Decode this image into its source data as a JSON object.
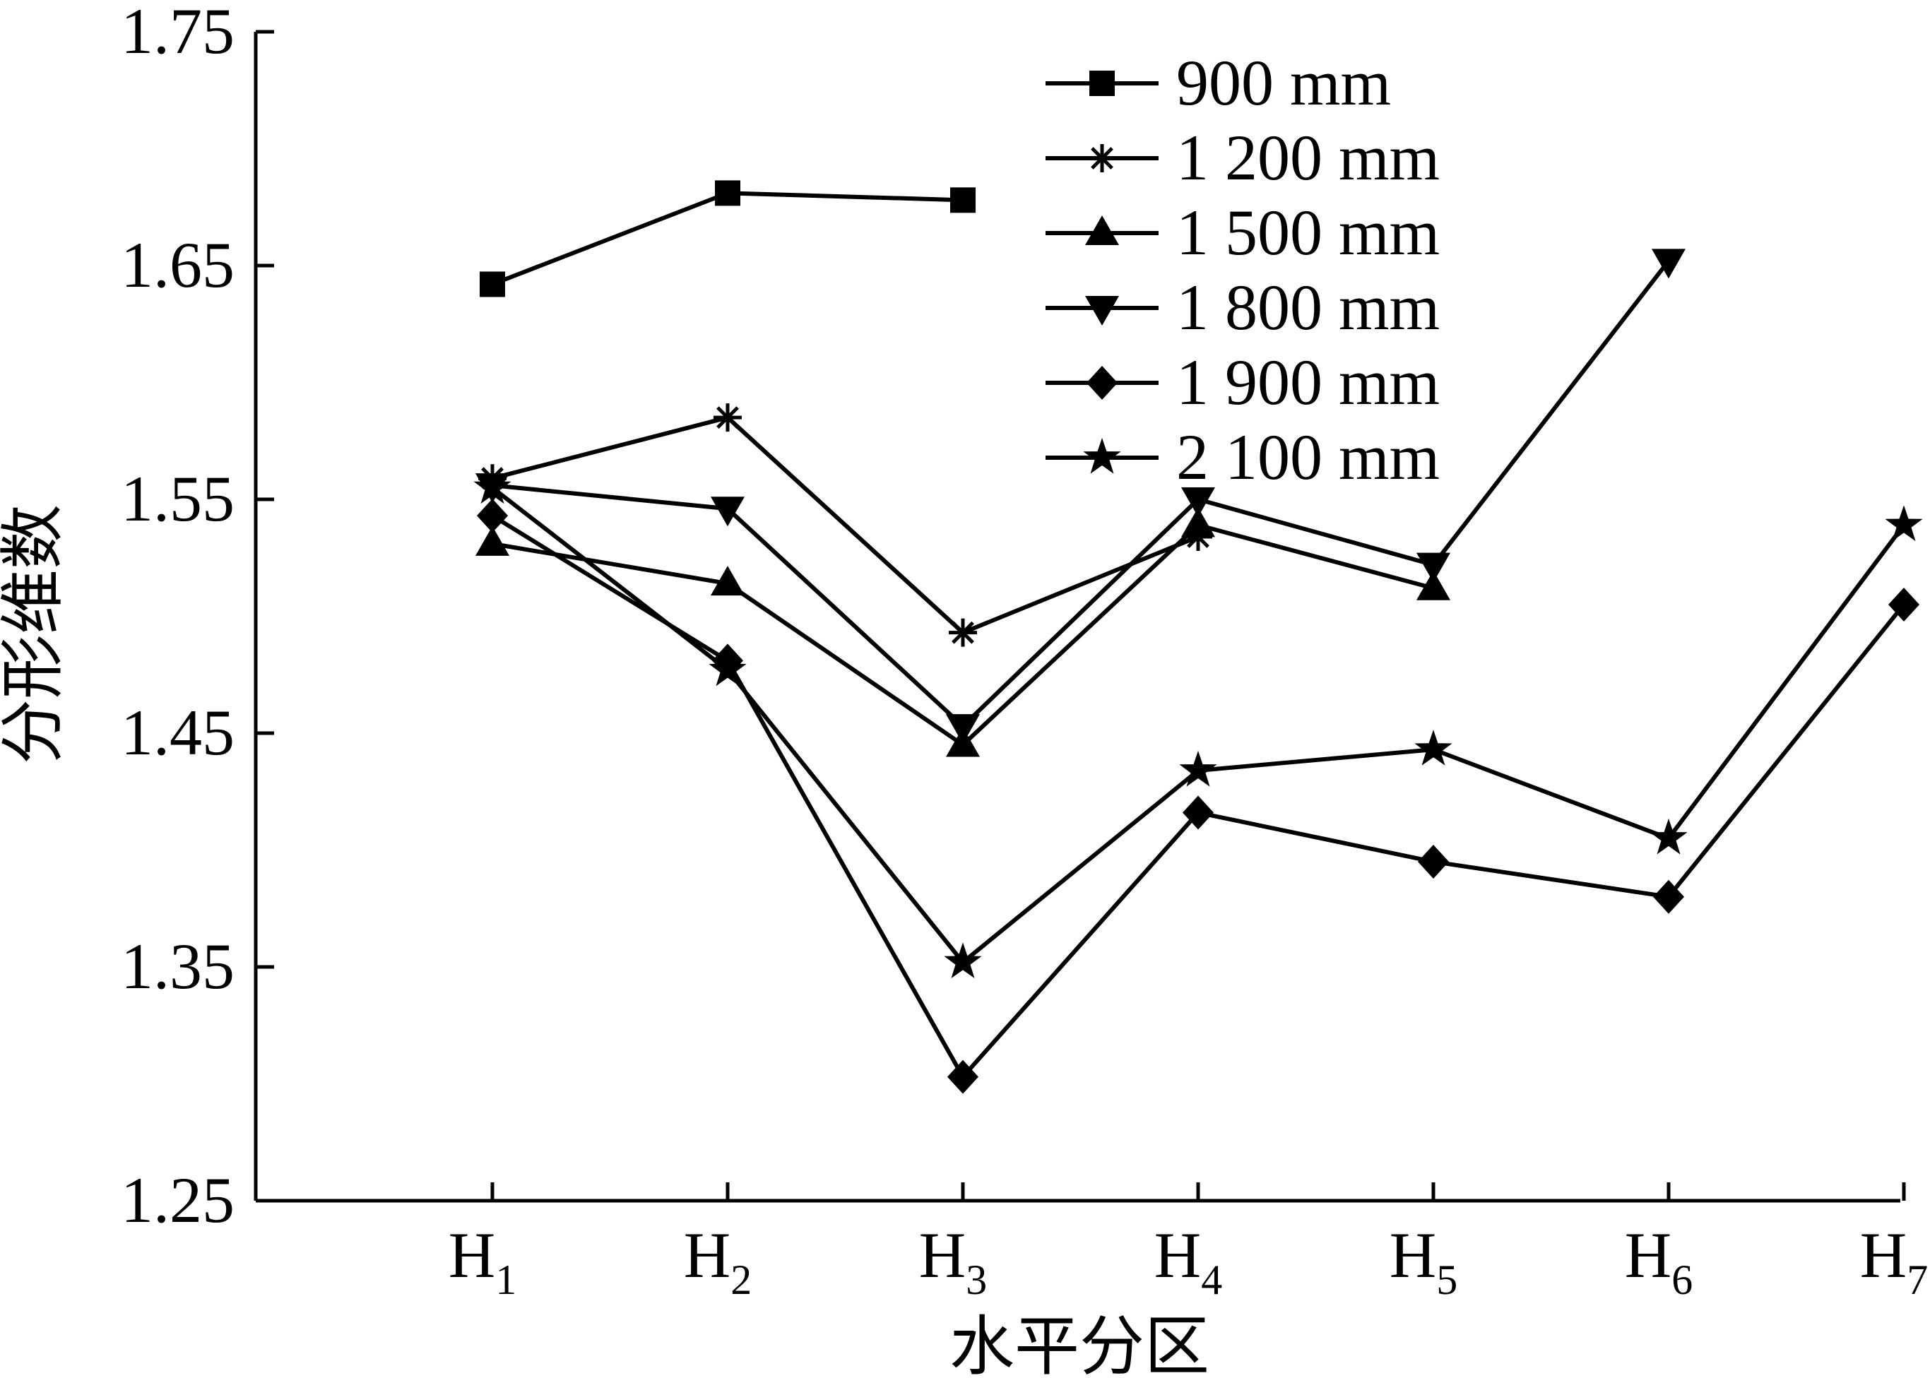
{
  "chart_data": {
    "type": "line",
    "title": "",
    "xlabel": "水平分区",
    "ylabel": "分形维数",
    "ylim": [
      1.25,
      1.75
    ],
    "yticks": [
      "1.25",
      "1.35",
      "1.45",
      "1.55",
      "1.65",
      "1.75"
    ],
    "categories": [
      {
        "main": "H",
        "sub": "1"
      },
      {
        "main": "H",
        "sub": "2"
      },
      {
        "main": "H",
        "sub": "3"
      },
      {
        "main": "H",
        "sub": "4"
      },
      {
        "main": "H",
        "sub": "5"
      },
      {
        "main": "H",
        "sub": "6"
      },
      {
        "main": "H",
        "sub": "7"
      }
    ],
    "grid": false,
    "legend_position": "top-right",
    "line_color": "#000000",
    "series": [
      {
        "name": "900 mm",
        "marker": "square",
        "values": [
          1.642,
          1.681,
          1.678,
          null,
          null,
          null,
          null
        ]
      },
      {
        "name": "1 200 mm",
        "marker": "asterisk",
        "values": [
          1.559,
          1.585,
          1.493,
          1.534,
          null,
          null,
          null
        ]
      },
      {
        "name": "1 500 mm",
        "marker": "triangle-up",
        "values": [
          1.531,
          1.514,
          1.445,
          1.539,
          1.512,
          null,
          null
        ]
      },
      {
        "name": "1 800 mm",
        "marker": "triangle-down",
        "values": [
          1.556,
          1.546,
          1.453,
          1.55,
          1.522,
          1.652,
          null
        ]
      },
      {
        "name": "1 900 mm",
        "marker": "diamond",
        "values": [
          1.543,
          1.481,
          1.303,
          1.416,
          1.395,
          1.38,
          1.505
        ]
      },
      {
        "name": "2 100 mm",
        "marker": "star",
        "values": [
          1.555,
          1.477,
          1.352,
          1.434,
          1.443,
          1.405,
          1.539
        ]
      }
    ]
  }
}
